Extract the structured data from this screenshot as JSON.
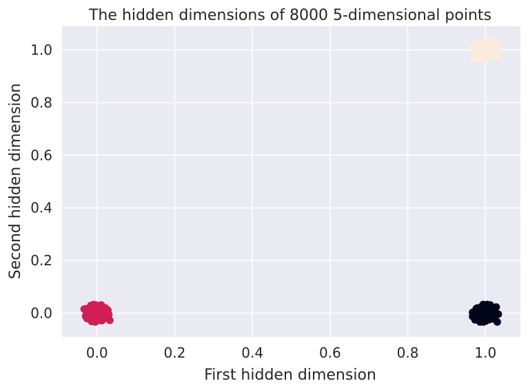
{
  "chart_data": {
    "type": "scatter",
    "title": "The hidden dimensions of 8000 5-dimensional points",
    "xlabel": "First hidden dimension",
    "ylabel": "Second hidden dimension",
    "xlim": [
      -0.09,
      1.09
    ],
    "ylim": [
      -0.09,
      1.09
    ],
    "xticks": [
      0.0,
      0.2,
      0.4,
      0.6,
      0.8,
      1.0
    ],
    "yticks": [
      0.0,
      0.2,
      0.4,
      0.6,
      0.8,
      1.0
    ],
    "xtick_labels": [
      "0.0",
      "0.2",
      "0.4",
      "0.6",
      "0.8",
      "1.0"
    ],
    "ytick_labels": [
      "0.0",
      "0.2",
      "0.4",
      "0.6",
      "0.8",
      "1.0"
    ],
    "grid": true,
    "background": "#eaeaf2",
    "clusters": [
      {
        "center": [
          0.0,
          0.0
        ],
        "spread": 0.03,
        "color": "#cf1f56"
      },
      {
        "center": [
          1.0,
          0.0
        ],
        "spread": 0.03,
        "color": "#03051a"
      },
      {
        "center": [
          1.0,
          1.0
        ],
        "spread": 0.03,
        "color": "#faebdd"
      }
    ]
  }
}
